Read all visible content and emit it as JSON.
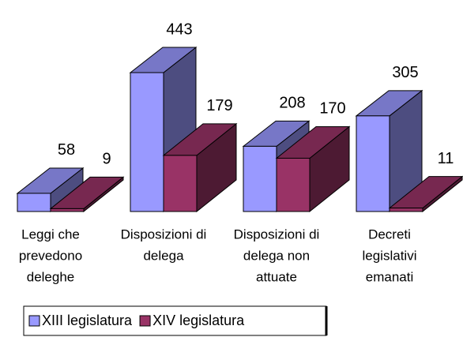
{
  "chart_data": {
    "type": "bar3d",
    "categories": [
      [
        "Leggi che",
        "prevedono",
        "deleghe"
      ],
      [
        "Disposizioni di",
        "delega"
      ],
      [
        "Disposizioni di",
        "delega non",
        "attuate"
      ],
      [
        "Decreti",
        "legislativi",
        "emanati"
      ]
    ],
    "series": [
      {
        "name": "XIII legislatura",
        "color": "#9999ff",
        "values": [
          58,
          443,
          208,
          305
        ]
      },
      {
        "name": "XIV legislatura",
        "color": "#993366",
        "values": [
          9,
          179,
          170,
          11
        ]
      }
    ],
    "legend": "bottom"
  }
}
